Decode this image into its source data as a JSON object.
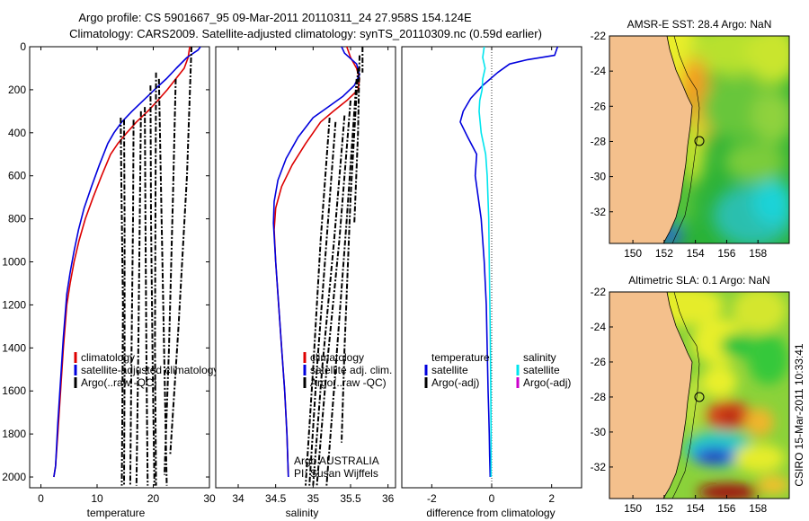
{
  "title_line1": "Argo profile: CS 5901667_95 09-Mar-2011 20110311_24 27.958S 154.124E",
  "title_line2": "Climatology: CARS2009. Satellite-adjusted climatology: synTS_20110309.nc (0.59d earlier)",
  "credit": "CSIRO 15-Mar-2011 10:33:41",
  "colors": {
    "climatology": "#dd0000",
    "satellite": "#0000dd",
    "satellite_salinity_diff": "#00e5ee",
    "argo": "#000000",
    "argo_adj_salinity": "#cc00cc",
    "land": "#f4c08c"
  },
  "chart_data": [
    {
      "id": "temperature",
      "type": "line",
      "xlabel": "temperature",
      "ylabel": "",
      "xlim": [
        -2,
        30
      ],
      "ylim": [
        2050,
        0
      ],
      "xticks": [
        0,
        10,
        20,
        30
      ],
      "yticks": [
        0,
        200,
        400,
        600,
        800,
        1000,
        1200,
        1400,
        1600,
        1800,
        2000
      ],
      "legend": {
        "position": "lower-right",
        "entries": [
          "climatology",
          "satellite-adjusted climatology",
          "Argo(..raw -QC)"
        ]
      },
      "series": [
        {
          "name": "climatology",
          "color": "#dd0000",
          "x": [
            26.5,
            26.2,
            25.5,
            24.0,
            22.5,
            20.8,
            19.0,
            17.0,
            15.3,
            13.7,
            12.4,
            10.8,
            9.3,
            7.9,
            6.8,
            5.9,
            5.2,
            4.6,
            4.0,
            3.5,
            3.0,
            2.6,
            2.3
          ],
          "y": [
            0,
            50,
            100,
            150,
            200,
            250,
            300,
            350,
            400,
            450,
            500,
            600,
            700,
            800,
            900,
            1000,
            1100,
            1200,
            1400,
            1600,
            1800,
            1950,
            2000
          ]
        },
        {
          "name": "satellite-adjusted climatology",
          "color": "#0000dd",
          "x": [
            28.4,
            28.0,
            26.0,
            24.1,
            22.3,
            20.2,
            18.2,
            16.2,
            14.4,
            13.0,
            11.9,
            10.4,
            9.0,
            7.7,
            6.7,
            5.9,
            5.2,
            4.6,
            4.0,
            3.5,
            3.0,
            2.6,
            2.3
          ],
          "y": [
            0,
            15,
            50,
            100,
            150,
            200,
            250,
            300,
            350,
            400,
            450,
            550,
            650,
            750,
            850,
            950,
            1050,
            1150,
            1350,
            1550,
            1750,
            1950,
            2000
          ]
        },
        {
          "name": "Argo(..raw -QC)",
          "color": "#000000",
          "dash": true,
          "x": [
            14.2,
            14.3,
            14.6,
            14.5,
            14.4
          ],
          "y": [
            330,
            600,
            1200,
            1700,
            2040
          ]
        },
        {
          "name": "Argo(..raw -QC)",
          "color": "#000000",
          "dash": true,
          "x": [
            14.8,
            14.9,
            14.9,
            14.8
          ],
          "y": [
            340,
            800,
            1500,
            2040
          ]
        },
        {
          "name": "Argo(..raw -QC)",
          "color": "#000000",
          "dash": true,
          "x": [
            16.5,
            16.4,
            16.1,
            15.9
          ],
          "y": [
            340,
            800,
            1500,
            2040
          ]
        },
        {
          "name": "Argo(..raw -QC)",
          "color": "#000000",
          "dash": true,
          "x": [
            17.8,
            17.6,
            17.3,
            17.0
          ],
          "y": [
            300,
            800,
            1500,
            2040
          ]
        },
        {
          "name": "Argo(..raw -QC)",
          "color": "#000000",
          "dash": true,
          "x": [
            18.5,
            18.6,
            18.8,
            19.0
          ],
          "y": [
            280,
            800,
            1500,
            2040
          ]
        },
        {
          "name": "Argo(..raw -QC)",
          "color": "#000000",
          "dash": true,
          "x": [
            19.5,
            19.6,
            19.9,
            20.2
          ],
          "y": [
            180,
            800,
            1500,
            2040
          ]
        },
        {
          "name": "Argo(..raw -QC)",
          "color": "#000000",
          "dash": true,
          "x": [
            20.5,
            20.4,
            20.3,
            20.5
          ],
          "y": [
            120,
            700,
            1400,
            2040
          ]
        },
        {
          "name": "Argo(..raw -QC)",
          "color": "#000000",
          "dash": true,
          "x": [
            21.0,
            21.4,
            22.0,
            22.4
          ],
          "y": [
            150,
            700,
            1500,
            2040
          ]
        },
        {
          "name": "Argo(..raw -QC)",
          "color": "#000000",
          "dash": true,
          "x": [
            24.0,
            23.5,
            22.8,
            22.0
          ],
          "y": [
            150,
            700,
            1400,
            1990
          ]
        },
        {
          "name": "Argo(..raw -QC)",
          "color": "#000000",
          "dash": true,
          "x": [
            26.8,
            26.0,
            24.5,
            23.0
          ],
          "y": [
            0,
            600,
            1300,
            1900
          ]
        }
      ]
    },
    {
      "id": "salinity",
      "type": "line",
      "xlabel": "salinity",
      "ylabel": "",
      "xlim": [
        33.7,
        36.1
      ],
      "ylim": [
        2050,
        0
      ],
      "xticks": [
        34,
        34.5,
        35,
        35.5,
        36
      ],
      "xticklabels": [
        "34",
        "34.5",
        "35",
        "35.5",
        "36"
      ],
      "legend": {
        "position": "lower-right",
        "entries": [
          "climatology",
          "satellite adj. clim.",
          "Argo(..raw -QC)"
        ]
      },
      "annotation": [
        "Argo AUSTRALIA",
        "PI: Susan Wijffels"
      ],
      "series": [
        {
          "name": "climatology",
          "color": "#dd0000",
          "x": [
            35.45,
            35.5,
            35.58,
            35.62,
            35.6,
            35.45,
            35.27,
            35.1,
            34.9,
            34.72,
            34.58,
            34.5,
            34.48,
            34.5,
            34.54,
            34.58,
            34.62,
            34.65,
            34.67
          ],
          "y": [
            0,
            50,
            100,
            150,
            200,
            250,
            300,
            350,
            450,
            550,
            650,
            750,
            850,
            1000,
            1200,
            1400,
            1600,
            1800,
            2000
          ]
        },
        {
          "name": "satellite adj. clim.",
          "color": "#0000dd",
          "x": [
            35.38,
            35.42,
            35.58,
            35.62,
            35.55,
            35.4,
            35.2,
            35.0,
            34.8,
            34.64,
            34.53,
            34.48,
            34.47,
            34.5,
            34.54,
            34.58,
            34.62,
            34.65,
            34.67
          ],
          "y": [
            0,
            30,
            80,
            130,
            180,
            230,
            280,
            330,
            420,
            520,
            620,
            720,
            820,
            1000,
            1200,
            1400,
            1600,
            1800,
            2000
          ]
        },
        {
          "name": "Argo(..raw -QC)",
          "color": "#000000",
          "dash": true,
          "x": [
            35.22,
            35.1,
            35.0,
            34.9
          ],
          "y": [
            330,
            900,
            1500,
            2040
          ]
        },
        {
          "name": "Argo(..raw -QC)",
          "color": "#000000",
          "dash": true,
          "x": [
            35.3,
            35.18,
            35.05,
            34.95
          ],
          "y": [
            350,
            900,
            1500,
            2040
          ]
        },
        {
          "name": "Argo(..raw -QC)",
          "color": "#000000",
          "dash": true,
          "x": [
            35.42,
            35.28,
            35.12,
            35.0
          ],
          "y": [
            320,
            900,
            1500,
            2040
          ]
        },
        {
          "name": "Argo(..raw -QC)",
          "color": "#000000",
          "dash": true,
          "x": [
            35.5,
            35.35,
            35.18,
            35.05
          ],
          "y": [
            250,
            900,
            1500,
            2040
          ]
        },
        {
          "name": "Argo(..raw -QC)",
          "color": "#000000",
          "dash": true,
          "x": [
            35.58,
            35.45,
            35.3,
            35.18
          ],
          "y": [
            150,
            800,
            1500,
            2040
          ]
        },
        {
          "name": "Argo(..raw -QC)",
          "color": "#000000",
          "dash": true,
          "x": [
            35.6,
            35.5,
            35.42,
            35.38
          ],
          "y": [
            100,
            700,
            1400,
            1840
          ]
        },
        {
          "name": "Argo(..raw -QC)",
          "color": "#000000",
          "dash": true,
          "x": [
            35.62,
            35.6,
            35.55
          ],
          "y": [
            40,
            400,
            820
          ]
        },
        {
          "name": "Argo(..raw -QC)",
          "color": "#000000",
          "dash": true,
          "x": [
            35.66,
            35.66
          ],
          "y": [
            0,
            120
          ]
        }
      ]
    },
    {
      "id": "difference",
      "type": "line",
      "xlabel": "difference from climatology",
      "ylabel": "",
      "xlim": [
        -3,
        3
      ],
      "ylim": [
        2050,
        0
      ],
      "xticks": [
        -2,
        0,
        2
      ],
      "legend": {
        "position": "lower-right",
        "groups": [
          {
            "title": "temperature",
            "entries": [
              "satellite",
              "Argo(-adj)"
            ]
          },
          {
            "title": "salinity",
            "entries": [
              "satellite",
              "Argo(-adj)"
            ]
          }
        ]
      },
      "series": [
        {
          "name": "satellite",
          "group": "temperature",
          "color": "#0000dd",
          "x": [
            2.2,
            2.1,
            1.2,
            0.6,
            0.2,
            -0.3,
            -0.7,
            -0.95,
            -1.05,
            -0.8,
            -0.5,
            -0.55,
            -0.45,
            -0.35,
            -0.25,
            -0.18,
            -0.15,
            -0.12,
            -0.1,
            -0.08,
            -0.07,
            -0.05
          ],
          "y": [
            0,
            40,
            60,
            80,
            120,
            180,
            240,
            300,
            350,
            420,
            500,
            600,
            700,
            800,
            1000,
            1200,
            1400,
            1600,
            1700,
            1800,
            1900,
            2000
          ]
        },
        {
          "name": "satellite",
          "group": "salinity",
          "color": "#00e5ee",
          "x": [
            -0.25,
            -0.3,
            -0.22,
            -0.3,
            -0.32,
            -0.4,
            -0.42,
            -0.35,
            -0.2,
            -0.15,
            -0.1,
            -0.08,
            -0.05,
            -0.03,
            -0.02,
            -0.02
          ],
          "y": [
            0,
            50,
            100,
            150,
            200,
            250,
            300,
            400,
            500,
            600,
            800,
            1000,
            1300,
            1600,
            1800,
            2000
          ]
        }
      ],
      "reference_line": {
        "x": 0
      }
    },
    {
      "id": "sst_map",
      "type": "heatmap",
      "title": "AMSR-E SST: 28.4 Argo: NaN",
      "xlim": [
        148.5,
        160
      ],
      "ylim": [
        -33.8,
        -22
      ],
      "xticks": [
        150,
        152,
        154,
        156,
        158
      ],
      "yticks": [
        -22,
        -24,
        -26,
        -28,
        -30,
        -32
      ],
      "yticklabels": [
        "-22",
        "-24",
        "-26",
        "-28",
        "-30",
        "-32"
      ],
      "marker": {
        "lon": 154.124,
        "lat": -27.958
      }
    },
    {
      "id": "sla_map",
      "type": "heatmap",
      "title": "Altimetric SLA: 0.1 Argo: NaN",
      "xlim": [
        148.5,
        160
      ],
      "ylim": [
        -33.8,
        -22
      ],
      "xticks": [
        150,
        152,
        154,
        156,
        158
      ],
      "yticks": [
        -22,
        -24,
        -26,
        -28,
        -30,
        -32
      ],
      "yticklabels": [
        "-22",
        "-24",
        "-26",
        "-28",
        "-30",
        "-32"
      ],
      "marker": {
        "lon": 154.124,
        "lat": -27.958
      }
    }
  ]
}
